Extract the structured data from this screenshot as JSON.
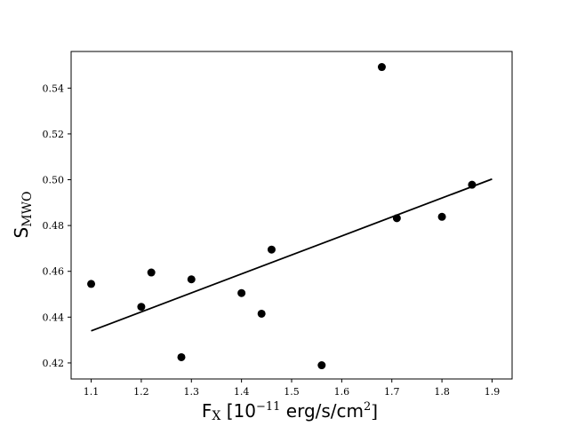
{
  "chart_data": {
    "type": "scatter",
    "xlabel": "F_X [10^-11 erg/s/cm^2]",
    "ylabel": "S_MWO",
    "xlabel_parts": {
      "main": "F",
      "sub": "X",
      "pre_exp": " [10",
      "exp": "−11",
      "post": " erg/s/cm",
      "exp2": "2",
      "close": "]"
    },
    "ylabel_parts": {
      "main": "S",
      "sub": "MWO"
    },
    "xlim": [
      1.06,
      1.94
    ],
    "ylim": [
      0.413,
      0.556
    ],
    "xticks": [
      "1.1",
      "1.2",
      "1.3",
      "1.4",
      "1.5",
      "1.6",
      "1.7",
      "1.8",
      "1.9"
    ],
    "yticks": [
      "0.42",
      "0.44",
      "0.46",
      "0.48",
      "0.50",
      "0.52",
      "0.54"
    ],
    "grid": false,
    "series": [
      {
        "marker": "circle",
        "color": "#000000",
        "points": [
          {
            "x": 1.1,
            "y": 0.4545
          },
          {
            "x": 1.2,
            "y": 0.4445
          },
          {
            "x": 1.22,
            "y": 0.4595
          },
          {
            "x": 1.28,
            "y": 0.4225
          },
          {
            "x": 1.3,
            "y": 0.4565
          },
          {
            "x": 1.4,
            "y": 0.4505
          },
          {
            "x": 1.44,
            "y": 0.4415
          },
          {
            "x": 1.46,
            "y": 0.4695
          },
          {
            "x": 1.56,
            "y": 0.419
          },
          {
            "x": 1.68,
            "y": 0.5492
          },
          {
            "x": 1.71,
            "y": 0.4832
          },
          {
            "x": 1.8,
            "y": 0.4838
          },
          {
            "x": 1.86,
            "y": 0.4978
          }
        ]
      }
    ],
    "fit_line": {
      "color": "#000000",
      "x": [
        1.1,
        1.9
      ],
      "y": [
        0.434,
        0.5003
      ]
    }
  }
}
